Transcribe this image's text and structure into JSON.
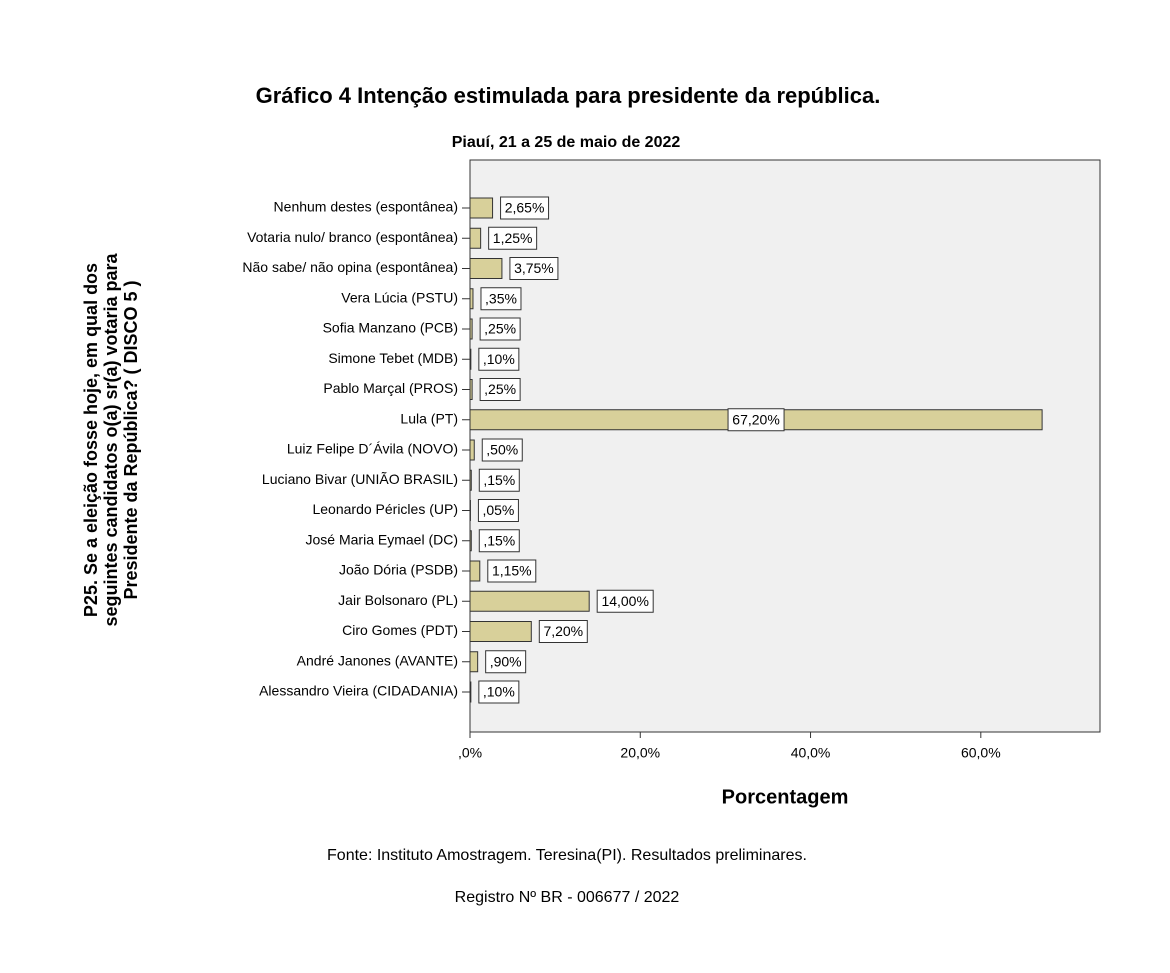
{
  "chart_data": {
    "type": "bar",
    "orientation": "horizontal",
    "title": "Gráfico 4 Intenção estimulada para presidente da república.",
    "subtitle": "Piauí, 21 a 25 de maio de 2022",
    "ylabel": [
      "P25. Se a eleição fosse hoje, em qual dos",
      "seguintes candidatos o(a) sr(a) votaria para",
      "Presidente da República?  (   DISCO 5   )"
    ],
    "xlabel": "Porcentagem",
    "categories": [
      "Nenhum destes (espontânea)",
      "Votaria nulo/ branco (espontânea)",
      "Não sabe/ não opina (espontânea)",
      "Vera Lúcia (PSTU)",
      "Sofia Manzano (PCB)",
      "Simone Tebet (MDB)",
      "Pablo Marçal (PROS)",
      "Lula (PT)",
      "Luiz Felipe D´Ávila (NOVO)",
      "Luciano Bivar (UNIÃO BRASIL)",
      "Leonardo Péricles (UP)",
      "José Maria Eymael (DC)",
      "João Dória (PSDB)",
      "Jair Bolsonaro (PL)",
      "Ciro Gomes (PDT)",
      "André Janones (AVANTE)",
      "Alessandro Vieira (CIDADANIA)"
    ],
    "values": [
      2.65,
      1.25,
      3.75,
      0.35,
      0.25,
      0.1,
      0.25,
      67.2,
      0.5,
      0.15,
      0.05,
      0.15,
      1.15,
      14.0,
      7.2,
      0.9,
      0.1
    ],
    "value_labels": [
      "2,65%",
      "1,25%",
      "3,75%",
      ",35%",
      ",25%",
      ",10%",
      ",25%",
      "67,20%",
      ",50%",
      ",15%",
      ",05%",
      ",15%",
      "1,15%",
      "14,00%",
      "7,20%",
      ",90%",
      ",10%"
    ],
    "color": "#d8d09a",
    "xlim": [
      0,
      74
    ],
    "xticks": [
      {
        "value": 0,
        "label": ",0%"
      },
      {
        "value": 20,
        "label": "20,0%"
      },
      {
        "value": 40,
        "label": "40,0%"
      },
      {
        "value": 60,
        "label": "60,0%"
      }
    ],
    "grid": false,
    "footnotes": [
      "Fonte: Instituto Amostragem. Teresina(PI). Resultados preliminares.",
      "Registro Nº BR - 006677 / 2022"
    ]
  }
}
